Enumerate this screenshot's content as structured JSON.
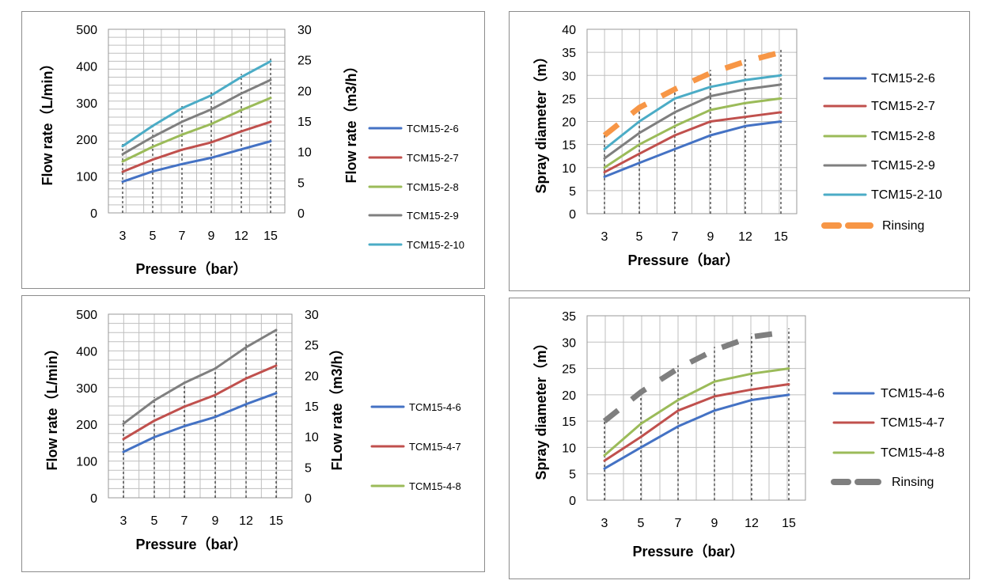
{
  "charts": {
    "flow_2": {
      "xlabel": "Pressure（bar）",
      "ylabel": "Flow rate（L/min）",
      "y2label": "Flow rate（m3/h）"
    },
    "spray_2": {
      "xlabel": "Pressure（bar）",
      "ylabel": "Spray diameter（m）"
    },
    "flow_4": {
      "xlabel": "Pressure（bar）",
      "ylabel": "Flow rate（L/min）",
      "y2label": "FLow rate（m3/h）"
    },
    "spray_4": {
      "xlabel": "Pressure（bar）",
      "ylabel": "Spray diameter（m）"
    }
  },
  "chart_data": [
    {
      "id": "flow_2",
      "type": "line",
      "categories": [
        "3",
        "5",
        "7",
        "9",
        "12",
        "15"
      ],
      "ylim": [
        0,
        500
      ],
      "yticks": [
        0,
        100,
        200,
        300,
        400,
        500
      ],
      "y2lim": [
        0,
        30
      ],
      "y2ticks": [
        0,
        5,
        10,
        15,
        20,
        25,
        30
      ],
      "grid": true,
      "legend_position": "right",
      "series": [
        {
          "name": "TCM15-2-6",
          "color": "#4472c4",
          "values": [
            85,
            113,
            133,
            150,
            173,
            195
          ]
        },
        {
          "name": "TCM15-2-7",
          "color": "#c0504d",
          "values": [
            112,
            145,
            172,
            192,
            222,
            248
          ]
        },
        {
          "name": "TCM15-2-8",
          "color": "#9bbb59",
          "values": [
            140,
            180,
            213,
            242,
            280,
            313
          ]
        },
        {
          "name": "TCM15-2-9",
          "color": "#7f7f7f",
          "values": [
            160,
            207,
            248,
            282,
            325,
            362
          ]
        },
        {
          "name": "TCM15-2-10",
          "color": "#4bacc6",
          "values": [
            182,
            237,
            285,
            320,
            370,
            413
          ]
        }
      ]
    },
    {
      "id": "spray_2",
      "type": "line",
      "categories": [
        "3",
        "5",
        "7",
        "9",
        "12",
        "15"
      ],
      "ylim": [
        0,
        40
      ],
      "yticks": [
        0,
        5,
        10,
        15,
        20,
        25,
        30,
        35,
        40
      ],
      "grid": true,
      "legend_position": "right",
      "series": [
        {
          "name": "TCM15-2-6",
          "color": "#4472c4",
          "values": [
            8,
            11,
            14,
            17,
            19,
            20
          ]
        },
        {
          "name": "TCM15-2-7",
          "color": "#c0504d",
          "values": [
            9,
            13,
            17,
            20,
            21,
            22
          ]
        },
        {
          "name": "TCM15-2-8",
          "color": "#9bbb59",
          "values": [
            10,
            15,
            19,
            22.5,
            24,
            25
          ]
        },
        {
          "name": "TCM15-2-9",
          "color": "#7f7f7f",
          "values": [
            12,
            17.5,
            22,
            25.5,
            27,
            28
          ]
        },
        {
          "name": "TCM15-2-10",
          "color": "#4bacc6",
          "values": [
            14,
            20,
            25,
            27.5,
            29,
            30
          ]
        },
        {
          "name": "Rinsing",
          "color": "#f79646",
          "dashed": true,
          "values": [
            17,
            23,
            27,
            30.5,
            33,
            35
          ]
        }
      ]
    },
    {
      "id": "flow_4",
      "type": "line",
      "categories": [
        "3",
        "5",
        "7",
        "9",
        "12",
        "15"
      ],
      "ylim": [
        0,
        500
      ],
      "yticks": [
        0,
        100,
        200,
        300,
        400,
        500
      ],
      "y2lim": [
        0,
        30
      ],
      "y2ticks": [
        0,
        5,
        10,
        15,
        20,
        25,
        30
      ],
      "grid": true,
      "legend_position": "right",
      "series": [
        {
          "name": "TCM15-4-6",
          "color": "#4472c4",
          "values": [
            125,
            165,
            195,
            220,
            255,
            285
          ]
        },
        {
          "name": "TCM15-4-7",
          "color": "#c0504d",
          "values": [
            160,
            210,
            248,
            280,
            325,
            360
          ]
        },
        {
          "name": "TCM15-4-8",
          "color": "#7f7f7f",
          "legend_color": "#9bbb59",
          "values": [
            202,
            265,
            313,
            352,
            410,
            457
          ]
        }
      ]
    },
    {
      "id": "spray_4",
      "type": "line",
      "categories": [
        "3",
        "5",
        "7",
        "9",
        "12",
        "15"
      ],
      "ylim": [
        0,
        35
      ],
      "yticks": [
        0,
        5,
        10,
        15,
        20,
        25,
        30,
        35
      ],
      "grid": true,
      "legend_position": "right",
      "series": [
        {
          "name": "TCM15-4-6",
          "color": "#4472c4",
          "values": [
            6,
            10,
            14,
            17,
            19,
            20
          ]
        },
        {
          "name": "TCM15-4-7",
          "color": "#c0504d",
          "values": [
            7.5,
            12,
            17,
            19.7,
            21,
            22
          ]
        },
        {
          "name": "TCM15-4-8",
          "color": "#9bbb59",
          "values": [
            8.5,
            14.5,
            19,
            22.5,
            24,
            25
          ]
        },
        {
          "name": "Rinsing",
          "color": "#7f7f7f",
          "dashed": true,
          "values": [
            15,
            20.5,
            25,
            28.5,
            31,
            32
          ]
        }
      ]
    }
  ]
}
